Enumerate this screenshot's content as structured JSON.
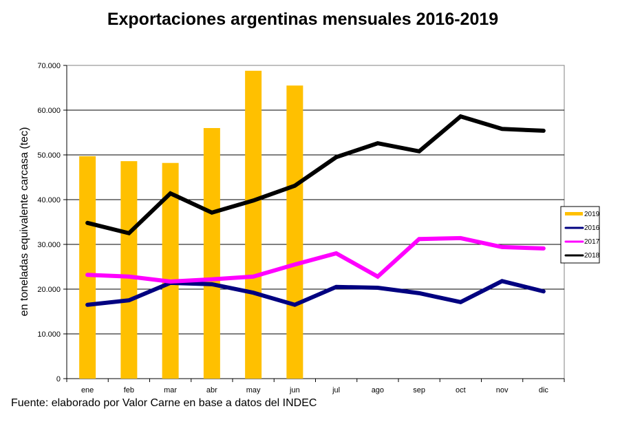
{
  "chart_data": {
    "type": "bar+line",
    "title": "Exportaciones argentinas mensuales 2016-2019",
    "xlabel": "",
    "ylabel": "en toneladas equivalente carcasa (tec)",
    "ylim": [
      0,
      70000
    ],
    "yticks": [
      0,
      10000,
      20000,
      30000,
      40000,
      50000,
      60000,
      70000
    ],
    "ytick_labels": [
      "0",
      "10.000",
      "20.000",
      "30.000",
      "40.000",
      "50.000",
      "60.000",
      "70.000"
    ],
    "grid": true,
    "legend_position": "right",
    "categories": [
      "ene",
      "feb",
      "mar",
      "abr",
      "may",
      "jun",
      "jul",
      "ago",
      "sep",
      "oct",
      "nov",
      "dic"
    ],
    "series": [
      {
        "name": "2019",
        "type": "bar",
        "color": "#FFC000",
        "values": [
          49700,
          48600,
          48200,
          56000,
          68800,
          65500,
          null,
          null,
          null,
          null,
          null,
          null
        ]
      },
      {
        "name": "2016",
        "type": "line",
        "color": "#000080",
        "values": [
          16500,
          17500,
          21400,
          21100,
          19200,
          16500,
          20500,
          20300,
          19100,
          17100,
          21800,
          19500
        ]
      },
      {
        "name": "2017",
        "type": "line",
        "color": "#FF00FF",
        "values": [
          23200,
          22800,
          21700,
          22200,
          22800,
          25500,
          28000,
          22800,
          31200,
          31400,
          29400,
          29100
        ]
      },
      {
        "name": "2018",
        "type": "line",
        "color": "#000000",
        "values": [
          34800,
          32500,
          41400,
          37100,
          39800,
          43100,
          49500,
          52600,
          50800,
          58600,
          55800,
          55400
        ]
      }
    ]
  },
  "source": "Fuente: elaborado por  Valor Carne en base a datos del INDEC"
}
